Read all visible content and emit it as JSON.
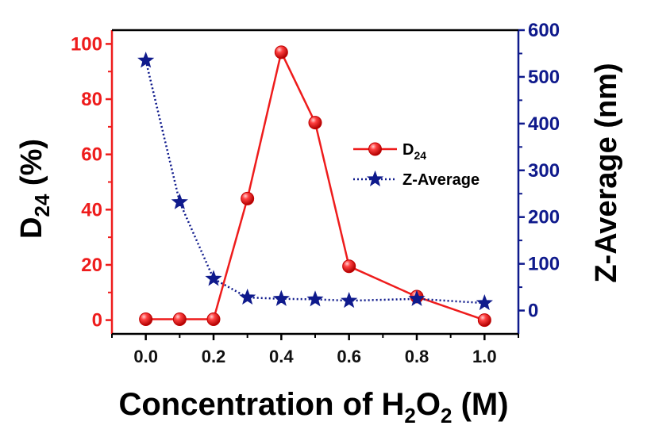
{
  "chart_data": {
    "type": "line",
    "xlabel_main": "Concentration of H",
    "xlabel_sub1": "2",
    "xlabel_mid": "O",
    "xlabel_sub2": "2",
    "xlabel_tail": " (M)",
    "ylabel_left_main": "D",
    "ylabel_left_sub": "24",
    "ylabel_left_tail": " (%)",
    "ylabel_right": "Z-Average (nm)",
    "xlim": [
      -0.1,
      1.1
    ],
    "ylim_left": [
      -5,
      105
    ],
    "ylim_right": [
      -50,
      600
    ],
    "x_ticks": [
      "0.0",
      "0.2",
      "0.4",
      "0.6",
      "0.8",
      "1.0"
    ],
    "y_left_ticks": [
      "0",
      "20",
      "40",
      "60",
      "80",
      "100"
    ],
    "y_right_ticks": [
      "0",
      "100",
      "200",
      "300",
      "400",
      "500",
      "600"
    ],
    "colors": {
      "left": "#ee1c1c",
      "right": "#0f1a8c"
    },
    "legend_position": "upper-right",
    "series": [
      {
        "name_main": "D",
        "name_sub": "24",
        "axis": "left",
        "marker": "sphere",
        "line": "solid",
        "x": [
          0.0,
          0.1,
          0.2,
          0.3,
          0.4,
          0.5,
          0.6,
          0.8,
          1.0
        ],
        "y": [
          0.3,
          0.3,
          0.3,
          44,
          97,
          71.5,
          19.5,
          8.5,
          0
        ]
      },
      {
        "name": "Z-Average",
        "axis": "right",
        "marker": "star",
        "line": "dotted",
        "x": [
          0.0,
          0.1,
          0.2,
          0.3,
          0.4,
          0.5,
          0.6,
          0.8,
          1.0
        ],
        "y": [
          535,
          232,
          68,
          28,
          25,
          24,
          21,
          25,
          16
        ]
      }
    ]
  }
}
